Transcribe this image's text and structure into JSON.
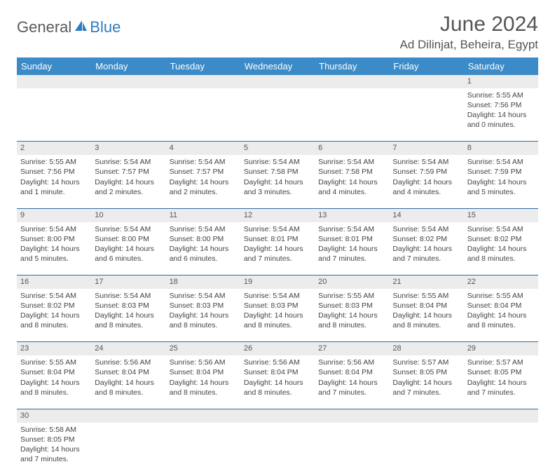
{
  "logo": {
    "part1": "General",
    "part2": "Blue"
  },
  "title": "June 2024",
  "location": "Ad Dilinjat, Beheira, Egypt",
  "colors": {
    "header_bg": "#3b8bc8",
    "header_text": "#ffffff",
    "daynum_bg": "#ececec",
    "border": "#2e6da4",
    "logo_gray": "#5a5a5a",
    "logo_blue": "#2e7cc0"
  },
  "weekdays": [
    "Sunday",
    "Monday",
    "Tuesday",
    "Wednesday",
    "Thursday",
    "Friday",
    "Saturday"
  ],
  "weeks": [
    [
      null,
      null,
      null,
      null,
      null,
      null,
      {
        "n": "1",
        "sr": "Sunrise: 5:55 AM",
        "ss": "Sunset: 7:56 PM",
        "dl": "Daylight: 14 hours and 0 minutes."
      }
    ],
    [
      {
        "n": "2",
        "sr": "Sunrise: 5:55 AM",
        "ss": "Sunset: 7:56 PM",
        "dl": "Daylight: 14 hours and 1 minute."
      },
      {
        "n": "3",
        "sr": "Sunrise: 5:54 AM",
        "ss": "Sunset: 7:57 PM",
        "dl": "Daylight: 14 hours and 2 minutes."
      },
      {
        "n": "4",
        "sr": "Sunrise: 5:54 AM",
        "ss": "Sunset: 7:57 PM",
        "dl": "Daylight: 14 hours and 2 minutes."
      },
      {
        "n": "5",
        "sr": "Sunrise: 5:54 AM",
        "ss": "Sunset: 7:58 PM",
        "dl": "Daylight: 14 hours and 3 minutes."
      },
      {
        "n": "6",
        "sr": "Sunrise: 5:54 AM",
        "ss": "Sunset: 7:58 PM",
        "dl": "Daylight: 14 hours and 4 minutes."
      },
      {
        "n": "7",
        "sr": "Sunrise: 5:54 AM",
        "ss": "Sunset: 7:59 PM",
        "dl": "Daylight: 14 hours and 4 minutes."
      },
      {
        "n": "8",
        "sr": "Sunrise: 5:54 AM",
        "ss": "Sunset: 7:59 PM",
        "dl": "Daylight: 14 hours and 5 minutes."
      }
    ],
    [
      {
        "n": "9",
        "sr": "Sunrise: 5:54 AM",
        "ss": "Sunset: 8:00 PM",
        "dl": "Daylight: 14 hours and 5 minutes."
      },
      {
        "n": "10",
        "sr": "Sunrise: 5:54 AM",
        "ss": "Sunset: 8:00 PM",
        "dl": "Daylight: 14 hours and 6 minutes."
      },
      {
        "n": "11",
        "sr": "Sunrise: 5:54 AM",
        "ss": "Sunset: 8:00 PM",
        "dl": "Daylight: 14 hours and 6 minutes."
      },
      {
        "n": "12",
        "sr": "Sunrise: 5:54 AM",
        "ss": "Sunset: 8:01 PM",
        "dl": "Daylight: 14 hours and 7 minutes."
      },
      {
        "n": "13",
        "sr": "Sunrise: 5:54 AM",
        "ss": "Sunset: 8:01 PM",
        "dl": "Daylight: 14 hours and 7 minutes."
      },
      {
        "n": "14",
        "sr": "Sunrise: 5:54 AM",
        "ss": "Sunset: 8:02 PM",
        "dl": "Daylight: 14 hours and 7 minutes."
      },
      {
        "n": "15",
        "sr": "Sunrise: 5:54 AM",
        "ss": "Sunset: 8:02 PM",
        "dl": "Daylight: 14 hours and 8 minutes."
      }
    ],
    [
      {
        "n": "16",
        "sr": "Sunrise: 5:54 AM",
        "ss": "Sunset: 8:02 PM",
        "dl": "Daylight: 14 hours and 8 minutes."
      },
      {
        "n": "17",
        "sr": "Sunrise: 5:54 AM",
        "ss": "Sunset: 8:03 PM",
        "dl": "Daylight: 14 hours and 8 minutes."
      },
      {
        "n": "18",
        "sr": "Sunrise: 5:54 AM",
        "ss": "Sunset: 8:03 PM",
        "dl": "Daylight: 14 hours and 8 minutes."
      },
      {
        "n": "19",
        "sr": "Sunrise: 5:54 AM",
        "ss": "Sunset: 8:03 PM",
        "dl": "Daylight: 14 hours and 8 minutes."
      },
      {
        "n": "20",
        "sr": "Sunrise: 5:55 AM",
        "ss": "Sunset: 8:03 PM",
        "dl": "Daylight: 14 hours and 8 minutes."
      },
      {
        "n": "21",
        "sr": "Sunrise: 5:55 AM",
        "ss": "Sunset: 8:04 PM",
        "dl": "Daylight: 14 hours and 8 minutes."
      },
      {
        "n": "22",
        "sr": "Sunrise: 5:55 AM",
        "ss": "Sunset: 8:04 PM",
        "dl": "Daylight: 14 hours and 8 minutes."
      }
    ],
    [
      {
        "n": "23",
        "sr": "Sunrise: 5:55 AM",
        "ss": "Sunset: 8:04 PM",
        "dl": "Daylight: 14 hours and 8 minutes."
      },
      {
        "n": "24",
        "sr": "Sunrise: 5:56 AM",
        "ss": "Sunset: 8:04 PM",
        "dl": "Daylight: 14 hours and 8 minutes."
      },
      {
        "n": "25",
        "sr": "Sunrise: 5:56 AM",
        "ss": "Sunset: 8:04 PM",
        "dl": "Daylight: 14 hours and 8 minutes."
      },
      {
        "n": "26",
        "sr": "Sunrise: 5:56 AM",
        "ss": "Sunset: 8:04 PM",
        "dl": "Daylight: 14 hours and 8 minutes."
      },
      {
        "n": "27",
        "sr": "Sunrise: 5:56 AM",
        "ss": "Sunset: 8:04 PM",
        "dl": "Daylight: 14 hours and 7 minutes."
      },
      {
        "n": "28",
        "sr": "Sunrise: 5:57 AM",
        "ss": "Sunset: 8:05 PM",
        "dl": "Daylight: 14 hours and 7 minutes."
      },
      {
        "n": "29",
        "sr": "Sunrise: 5:57 AM",
        "ss": "Sunset: 8:05 PM",
        "dl": "Daylight: 14 hours and 7 minutes."
      }
    ],
    [
      {
        "n": "30",
        "sr": "Sunrise: 5:58 AM",
        "ss": "Sunset: 8:05 PM",
        "dl": "Daylight: 14 hours and 7 minutes."
      },
      null,
      null,
      null,
      null,
      null,
      null
    ]
  ]
}
